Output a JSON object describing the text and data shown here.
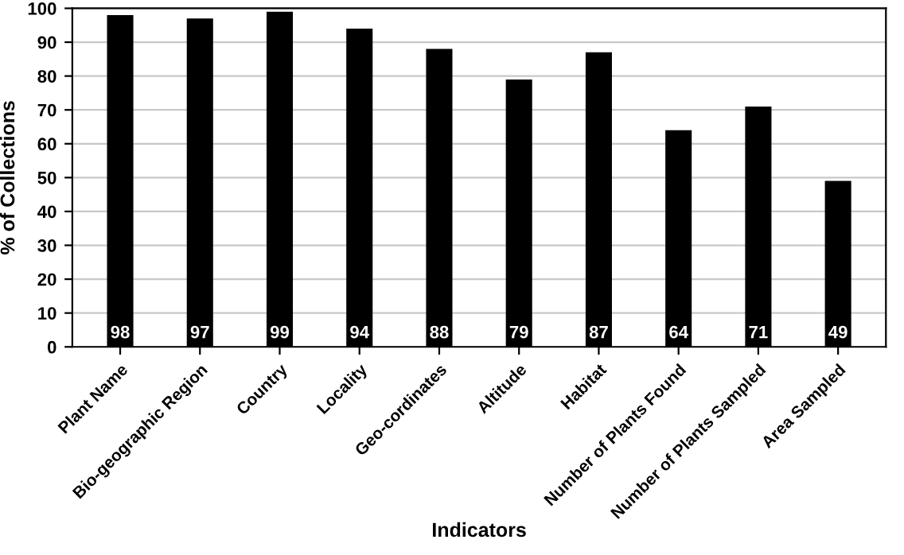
{
  "chart_data": {
    "type": "bar",
    "xlabel": "Indicators",
    "ylabel": "% of Collections",
    "categories": [
      "Plant Name",
      "Bio-geographic Region",
      "Country",
      "Locality",
      "Geo-cordinates",
      "Altitude",
      "Habitat",
      "Number of Plants Found",
      "Number of Plants Sampled",
      "Area Sampled"
    ],
    "values": [
      98,
      97,
      99,
      94,
      88,
      79,
      87,
      64,
      71,
      49
    ],
    "color": "#000000",
    "ylim": [
      0,
      100
    ],
    "yticks": [
      0,
      10,
      20,
      30,
      40,
      50,
      60,
      70,
      80,
      90,
      100
    ],
    "grid": "y",
    "data_labels": true
  }
}
